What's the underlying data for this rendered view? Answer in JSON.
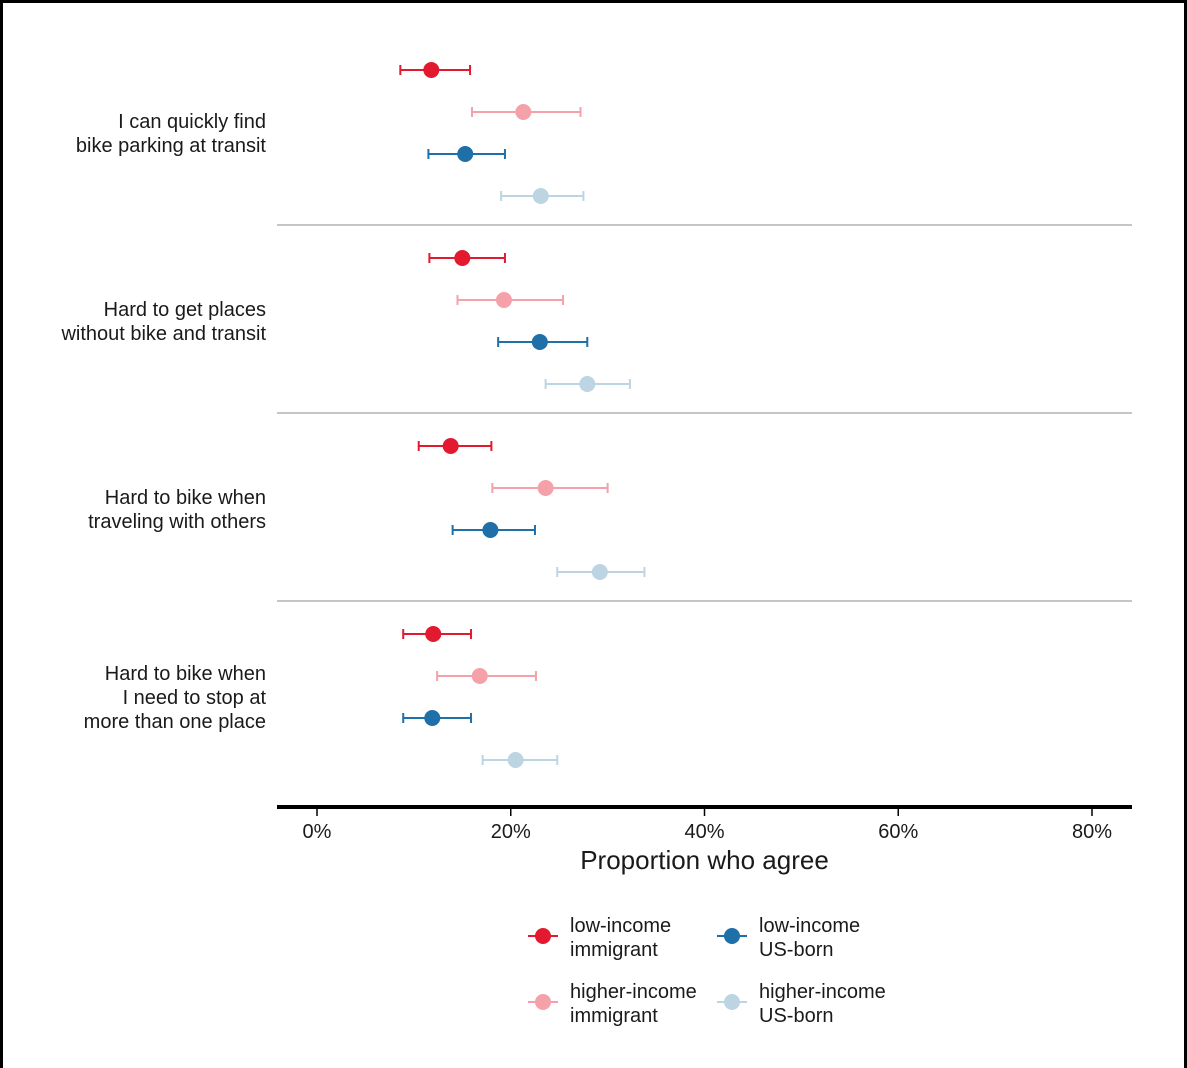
{
  "chart_data": {
    "type": "scatter",
    "orientation": "horizontal",
    "error_bars": true,
    "categories": [
      [
        "I can quickly find",
        "bike parking at transit"
      ],
      [
        "Hard to get places",
        "without bike and transit"
      ],
      [
        "Hard to bike when",
        "traveling with others"
      ],
      [
        "Hard to bike when",
        "I need to stop at",
        "more than one place"
      ]
    ],
    "series": [
      {
        "name": "low-income immigrant",
        "color": "#e31a2f",
        "values": [
          11.8,
          15.0,
          13.8,
          12.0
        ],
        "ci_low": [
          8.6,
          11.6,
          10.5,
          8.9
        ],
        "ci_high": [
          15.8,
          19.4,
          18.0,
          15.9
        ]
      },
      {
        "name": "higher-income immigrant",
        "color": "#f4a1a9",
        "values": [
          21.3,
          19.3,
          23.6,
          16.8
        ],
        "ci_low": [
          16.0,
          14.5,
          18.1,
          12.4
        ],
        "ci_high": [
          27.2,
          25.4,
          30.0,
          22.6
        ]
      },
      {
        "name": "low-income US-born",
        "color": "#1f6fa8",
        "values": [
          15.3,
          23.0,
          17.9,
          11.9
        ],
        "ci_low": [
          11.5,
          18.7,
          14.0,
          8.9
        ],
        "ci_high": [
          19.4,
          27.9,
          22.5,
          15.9
        ]
      },
      {
        "name": "higher-income US-born",
        "color": "#bdd5e3",
        "values": [
          23.1,
          27.9,
          29.2,
          20.5
        ],
        "ci_low": [
          19.0,
          23.6,
          24.8,
          17.1
        ],
        "ci_high": [
          27.5,
          32.3,
          33.8,
          24.8
        ]
      }
    ],
    "xlabel": "Proportion who agree",
    "xticks": [
      "0%",
      "20%",
      "40%",
      "60%",
      "80%"
    ],
    "xlim": [
      -4,
      84
    ],
    "grid": false,
    "legend_position": "bottom"
  },
  "legend": {
    "items": [
      {
        "line1": "low-income",
        "line2": "immigrant",
        "color": "#e31a2f"
      },
      {
        "line1": "low-income",
        "line2": "US-born",
        "color": "#1f6fa8"
      },
      {
        "line1": "higher-income",
        "line2": "immigrant",
        "color": "#f4a1a9"
      },
      {
        "line1": "higher-income",
        "line2": "US-born",
        "color": "#bdd5e3"
      }
    ]
  }
}
